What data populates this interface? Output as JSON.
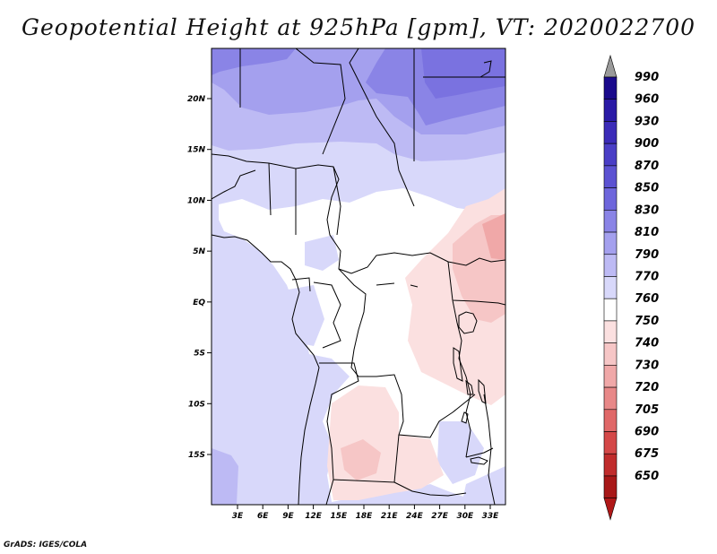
{
  "title": "Geopotential Height at 925hPa [gpm], VT: 2020022700",
  "credit": "GrADS: IGES/COLA",
  "map": {
    "lon_range": [
      0,
      35
    ],
    "lat_range": [
      -20,
      25
    ],
    "lon_ticks": [
      {
        "value": 3,
        "label": "3E"
      },
      {
        "value": 6,
        "label": "6E"
      },
      {
        "value": 9,
        "label": "9E"
      },
      {
        "value": 12,
        "label": "12E"
      },
      {
        "value": 15,
        "label": "15E"
      },
      {
        "value": 18,
        "label": "18E"
      },
      {
        "value": 21,
        "label": "21E"
      },
      {
        "value": 24,
        "label": "24E"
      },
      {
        "value": 27,
        "label": "27E"
      },
      {
        "value": 30,
        "label": "30E"
      },
      {
        "value": 33,
        "label": "33E"
      }
    ],
    "lat_ticks": [
      {
        "value": 20,
        "label": "20N"
      },
      {
        "value": 15,
        "label": "15N"
      },
      {
        "value": 10,
        "label": "10N"
      },
      {
        "value": 5,
        "label": "5N"
      },
      {
        "value": 0,
        "label": "EQ"
      },
      {
        "value": -5,
        "label": "5S"
      },
      {
        "value": -10,
        "label": "10S"
      },
      {
        "value": -15,
        "label": "15S"
      }
    ]
  },
  "colorbar": {
    "levels": [
      {
        "label": "990",
        "color": "#1a0a8c"
      },
      {
        "label": "960",
        "color": "#2a1aa6"
      },
      {
        "label": "930",
        "color": "#3b2bb8"
      },
      {
        "label": "900",
        "color": "#4a3ec6"
      },
      {
        "label": "870",
        "color": "#5c52d2"
      },
      {
        "label": "850",
        "color": "#6e66dc"
      },
      {
        "label": "830",
        "color": "#8a84e6"
      },
      {
        "label": "810",
        "color": "#a4a0ee"
      },
      {
        "label": "790",
        "color": "#bdbaf4"
      },
      {
        "label": "770",
        "color": "#d8d8fa"
      },
      {
        "label": "760",
        "color": "#ffffff"
      },
      {
        "label": "750",
        "color": "#fbe0e0"
      },
      {
        "label": "740",
        "color": "#f6c6c6"
      },
      {
        "label": "730",
        "color": "#f0a8a8"
      },
      {
        "label": "720",
        "color": "#e88888"
      },
      {
        "label": "705",
        "color": "#e06868"
      },
      {
        "label": "690",
        "color": "#d44848"
      },
      {
        "label": "675",
        "color": "#c02c2c"
      },
      {
        "label": "650",
        "color": "#a81818"
      }
    ],
    "top_arrow_color": "#9a9a9a",
    "bottom_arrow_color": "#b01818"
  }
}
